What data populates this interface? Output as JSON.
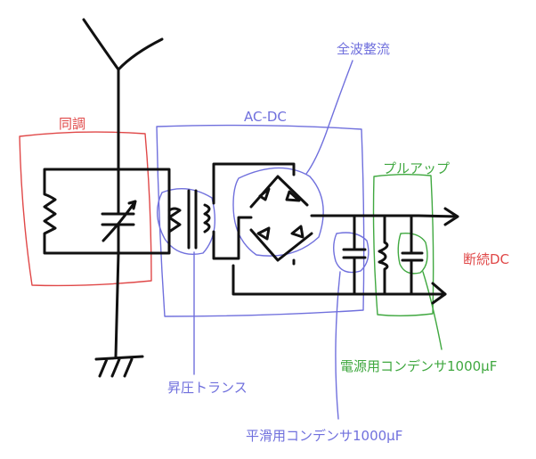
{
  "labels": {
    "tuning": "同調",
    "acdc": "AC-DC",
    "full_wave": "全波整流",
    "pullup": "プルアップ",
    "intermittent_dc": "断続DC",
    "power_cap": "電源用コンデンサ1000µF",
    "step_up_transformer": "昇圧トランス",
    "smoothing_cap": "平滑用コンデンサ1000µF"
  },
  "colors": {
    "wire": "#111111",
    "red": "#e04848",
    "blue": "#7070dd",
    "green": "#40a840"
  }
}
